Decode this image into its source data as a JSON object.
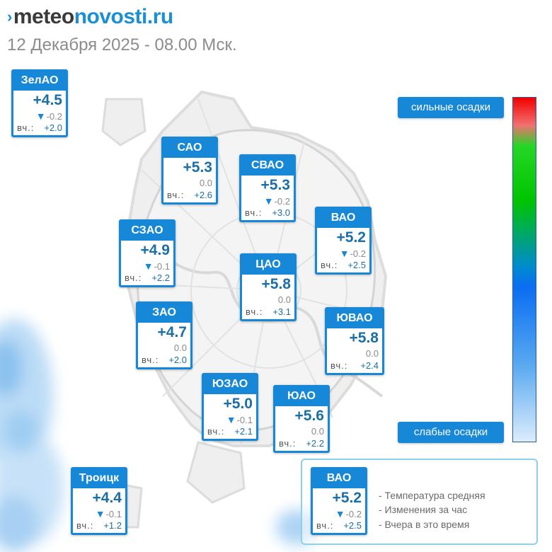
{
  "brand": {
    "mark": "›",
    "part1": "meteo",
    "part2": "novosti.ru"
  },
  "subtitle": "12 Декабря 2025 - 08.00 Мск.",
  "colors": {
    "accent": "#1787d8",
    "temp_text": "#1a6fa8",
    "muted": "#8a8a8a"
  },
  "districts": [
    {
      "id": "zelao",
      "name": "ЗелАО",
      "temp": "+4.5",
      "change": "-0.2",
      "trend": "down",
      "yesterday_label": "вч.:",
      "yesterday": "+2.0"
    },
    {
      "id": "sao",
      "name": "САО",
      "temp": "+5.3",
      "change": "0.0",
      "trend": "none",
      "yesterday_label": "вч.:",
      "yesterday": "+2.6"
    },
    {
      "id": "svao",
      "name": "СВАО",
      "temp": "+5.3",
      "change": "-0.2",
      "trend": "down",
      "yesterday_label": "вч.:",
      "yesterday": "+3.0"
    },
    {
      "id": "vao",
      "name": "ВАО",
      "temp": "+5.2",
      "change": "-0.2",
      "trend": "down",
      "yesterday_label": "вч.:",
      "yesterday": "+2.5"
    },
    {
      "id": "szao",
      "name": "СЗАО",
      "temp": "+4.9",
      "change": "-0.1",
      "trend": "down",
      "yesterday_label": "вч.:",
      "yesterday": "+2.2"
    },
    {
      "id": "cao",
      "name": "ЦАО",
      "temp": "+5.8",
      "change": "0.0",
      "trend": "none",
      "yesterday_label": "вч.:",
      "yesterday": "+3.1"
    },
    {
      "id": "zao",
      "name": "ЗАО",
      "temp": "+4.7",
      "change": "0.0",
      "trend": "none",
      "yesterday_label": "вч.:",
      "yesterday": "+2.0"
    },
    {
      "id": "yuvao",
      "name": "ЮВАО",
      "temp": "+5.8",
      "change": "0.0",
      "trend": "none",
      "yesterday_label": "вч.:",
      "yesterday": "+2.4"
    },
    {
      "id": "yuzao",
      "name": "ЮЗАО",
      "temp": "+5.0",
      "change": "-0.1",
      "trend": "down",
      "yesterday_label": "вч.:",
      "yesterday": "+2.1"
    },
    {
      "id": "yuao",
      "name": "ЮАО",
      "temp": "+5.6",
      "change": "0.0",
      "trend": "none",
      "yesterday_label": "вч.:",
      "yesterday": "+2.2"
    },
    {
      "id": "troitsk",
      "name": "Троицк",
      "temp": "+4.4",
      "change": "-0.1",
      "trend": "down",
      "yesterday_label": "вч.:",
      "yesterday": "+1.2"
    }
  ],
  "scale": {
    "top_label": "сильные осадки",
    "bottom_label": "слабые осадки"
  },
  "legend": {
    "sample": {
      "name": "ВАО",
      "temp": "+5.2",
      "change": "-0.2",
      "trend": "down",
      "yesterday_label": "вч.:",
      "yesterday": "+2.5"
    },
    "items": [
      "- Температура средняя",
      "- Изменения за час",
      "- Вчера в это время"
    ]
  }
}
